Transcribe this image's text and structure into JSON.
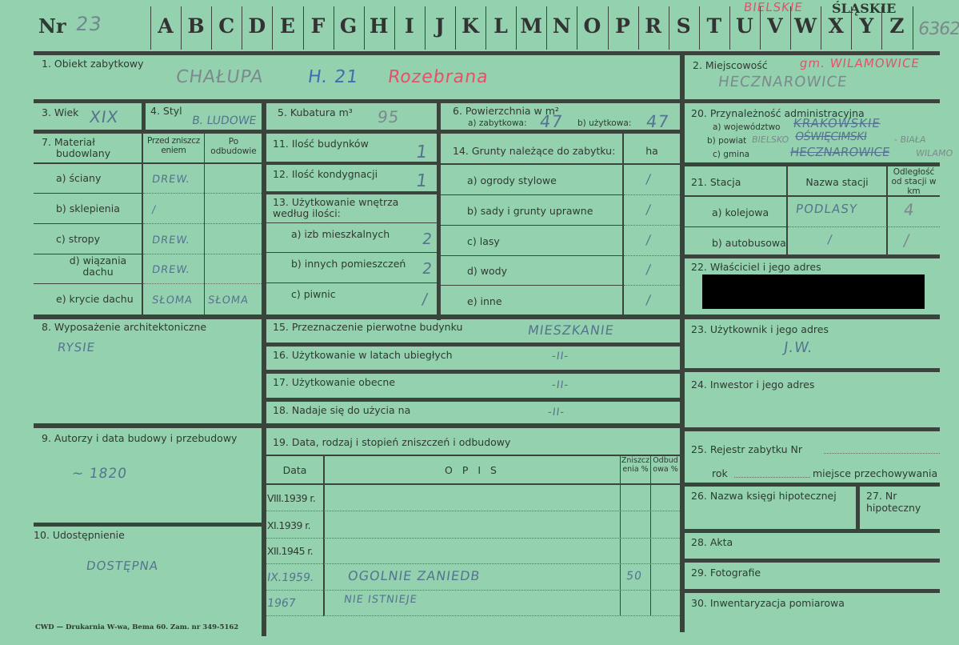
{
  "header": {
    "nr_label": "Nr",
    "nr_value": "23",
    "letters": [
      "A",
      "B",
      "C",
      "D",
      "E",
      "F",
      "G",
      "H",
      "I",
      "J",
      "K",
      "L",
      "M",
      "N",
      "O",
      "P",
      "R",
      "S",
      "T",
      "U",
      "V",
      "W",
      "X",
      "Y",
      "Z"
    ],
    "region_stamp": "ŚLĄSKIE",
    "region_red": "BIELSKIE",
    "card_number": "6362"
  },
  "f1": {
    "label": "1. Obiekt zabytkowy",
    "value": "CHAŁUPA",
    "number": "H. 21",
    "note": "Rozebrana"
  },
  "f2": {
    "label": "2. Miejscowość",
    "value": "HECZNAROWICE",
    "note": "gm. WILAMOWICE"
  },
  "f3": {
    "label": "3. Wiek",
    "value": "XIX"
  },
  "f4": {
    "label": "4. Styl",
    "value": "B. LUDOWE"
  },
  "f5": {
    "label": "5. Kubatura m³",
    "value": "95"
  },
  "f6": {
    "label": "6. Powierzchnia w m²",
    "a_label": "a) zabytkowa:",
    "a_value": "47",
    "b_label": "b) użytkowa:",
    "b_value": "47"
  },
  "f7": {
    "label_1": "7. Materiał",
    "label_2": "budowlany",
    "col_before": "Przed zniszczeniem",
    "col_after": "Po odbudowie",
    "rows": [
      {
        "label": "a) ściany",
        "before": "DREW.",
        "after": ""
      },
      {
        "label": "b) sklepienia",
        "before": "/",
        "after": ""
      },
      {
        "label": "c) stropy",
        "before": "DREW.",
        "after": ""
      },
      {
        "label": "d) wiązania dachu",
        "before": "DREW.",
        "after": ""
      },
      {
        "label": "e) krycie dachu",
        "before": "SŁOMA",
        "after": "SŁOMA"
      }
    ]
  },
  "f11": {
    "label": "11. Ilość budynków",
    "value": "1"
  },
  "f12": {
    "label": "12. Ilość kondygnacji",
    "value": "1"
  },
  "f13": {
    "label": "13. Użytkowanie wnętrza według ilości:",
    "rows": [
      {
        "label": "a) izb mieszkalnych",
        "value": "2"
      },
      {
        "label": "b) innych pomieszczeń",
        "value": "2"
      },
      {
        "label": "c) piwnic",
        "value": "/"
      }
    ]
  },
  "f14": {
    "label": "14. Grunty należące do zabytku:",
    "unit": "ha",
    "rows": [
      {
        "label": "a) ogrody stylowe",
        "value": "/"
      },
      {
        "label": "b) sady i grunty uprawne",
        "value": "/"
      },
      {
        "label": "c) lasy",
        "value": "/"
      },
      {
        "label": "d) wody",
        "value": "/"
      },
      {
        "label": "e) inne",
        "value": "/"
      }
    ]
  },
  "f20": {
    "label": "20. Przynależność administracyjna",
    "a_label": "a) województwo",
    "a_value": "KRAKOWSKIE",
    "b_label": "b) powiat",
    "b_value": "OŚWIĘCIMSKI",
    "b_note_left": "BIELSKO",
    "b_note_right": "- BIAŁA",
    "c_label": "c) gmina",
    "c_value": "HECZNAROWICE",
    "c_note": "WILAMO"
  },
  "f21": {
    "label": "21. Stacja",
    "col_name": "Nazwa stacji",
    "col_dist": "Odległość od stacji w km",
    "rows": [
      {
        "label": "a) kolejowa",
        "name": "PODLASY",
        "dist": "4"
      },
      {
        "label": "b) autobusowa",
        "name": "/",
        "dist": "/"
      }
    ]
  },
  "f22": {
    "label": "22. Właściciel i jego adres"
  },
  "f8": {
    "label": "8. Wyposażenie architektoniczne",
    "value": "RYSIE"
  },
  "f15": {
    "label": "15. Przeznaczenie pierwotne budynku",
    "value": "MIESZKANIE"
  },
  "f16": {
    "label": "16. Użytkowanie w latach ubiegłych",
    "value": "-II-"
  },
  "f17": {
    "label": "17. Użytkowanie obecne",
    "value": "-II-"
  },
  "f18": {
    "label": "18. Nadaje się do użycia na",
    "value": "-II-"
  },
  "f23": {
    "label": "23. Użytkownik i jego adres",
    "value": "J.W."
  },
  "f24": {
    "label": "24. Inwestor i jego adres"
  },
  "f9": {
    "label": "9. Autorzy i data budowy i przebudowy",
    "value": "~ 1820"
  },
  "f10": {
    "label": "10. Udostępnienie",
    "value": "DOSTĘPNA"
  },
  "f19": {
    "label": "19. Data, rodzaj i stopień zniszczeń i odbudowy",
    "col_date": "Data",
    "col_desc": "O P I S",
    "col_destr": "Zniszczenia %",
    "col_rebuilt": "Odbudowa %",
    "rows": [
      {
        "date": "VIII.1939 r.",
        "desc": "",
        "destr": "",
        "rebuilt": ""
      },
      {
        "date": "XI.1939 r.",
        "desc": "",
        "destr": "",
        "rebuilt": ""
      },
      {
        "date": "XII.1945 r.",
        "desc": "",
        "destr": "",
        "rebuilt": ""
      },
      {
        "date": "IX.1959.",
        "desc": "OGOLNIE ZANIEDB",
        "destr": "50",
        "rebuilt": ""
      },
      {
        "date": "1967",
        "desc": "NIE ISTNIEJE",
        "destr": "",
        "rebuilt": ""
      }
    ]
  },
  "f25": {
    "label": "25. Rejestr zabytku Nr",
    "rok_label": "rok",
    "place_label": "miejsce przechowywania"
  },
  "f26": {
    "label": "26. Nazwa księgi hipotecznej"
  },
  "f27": {
    "label": "27. Nr hipoteczny"
  },
  "f28": {
    "label": "28. Akta"
  },
  "f29": {
    "label": "29. Fotografie"
  },
  "f30": {
    "label": "30. Inwentaryzacja pomiarowa"
  },
  "footer": {
    "printer": "CWD — Drukarnia W-wa, Bema 60. Zam. nr 349-5162"
  },
  "colors": {
    "card": "#94d1ae",
    "ink_blue": "#55748f",
    "ink_red": "#e6506a",
    "redaction": "#000000"
  }
}
